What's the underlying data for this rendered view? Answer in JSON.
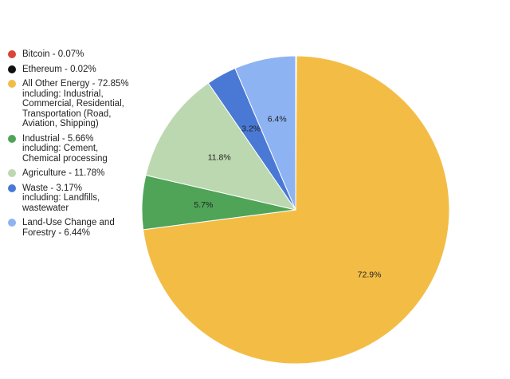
{
  "chart_data": {
    "type": "pie",
    "title": "",
    "legend_position": "left",
    "start": "top",
    "direction": "clockwise",
    "series": [
      {
        "name": "Bitcoin",
        "value": 0.07,
        "legend": "Bitcoin - 0.07%",
        "data_label": "",
        "color": "#db4437"
      },
      {
        "name": "Ethereum",
        "value": 0.02,
        "legend": "Ethereum - 0.02%",
        "data_label": "",
        "color": "#111111"
      },
      {
        "name": "All Other Energy",
        "value": 72.85,
        "legend": "All Other Energy - 72.85%\nincluding: Industrial,\nCommercial, Residential,\nTransportation (Road,\nAviation, Shipping)",
        "data_label": "72.9%",
        "color": "#f3bd45"
      },
      {
        "name": "Industrial",
        "value": 5.66,
        "legend": "Industrial - 5.66%\nincluding: Cement,\nChemical processing",
        "data_label": "5.7%",
        "color": "#4fa457"
      },
      {
        "name": "Agriculture",
        "value": 11.78,
        "legend": "Agriculture - 11.78%",
        "data_label": "11.8%",
        "color": "#bcd8b0"
      },
      {
        "name": "Waste",
        "value": 3.17,
        "legend": "Waste - 3.17%\nincluding: Landfills,\nwastewater",
        "data_label": "3.2%",
        "color": "#4a79d5"
      },
      {
        "name": "Land-Use Change and Forestry",
        "value": 6.44,
        "legend": "Land-Use Change and\nForestry - 6.44%",
        "data_label": "6.4%",
        "color": "#8db3f3"
      }
    ]
  }
}
